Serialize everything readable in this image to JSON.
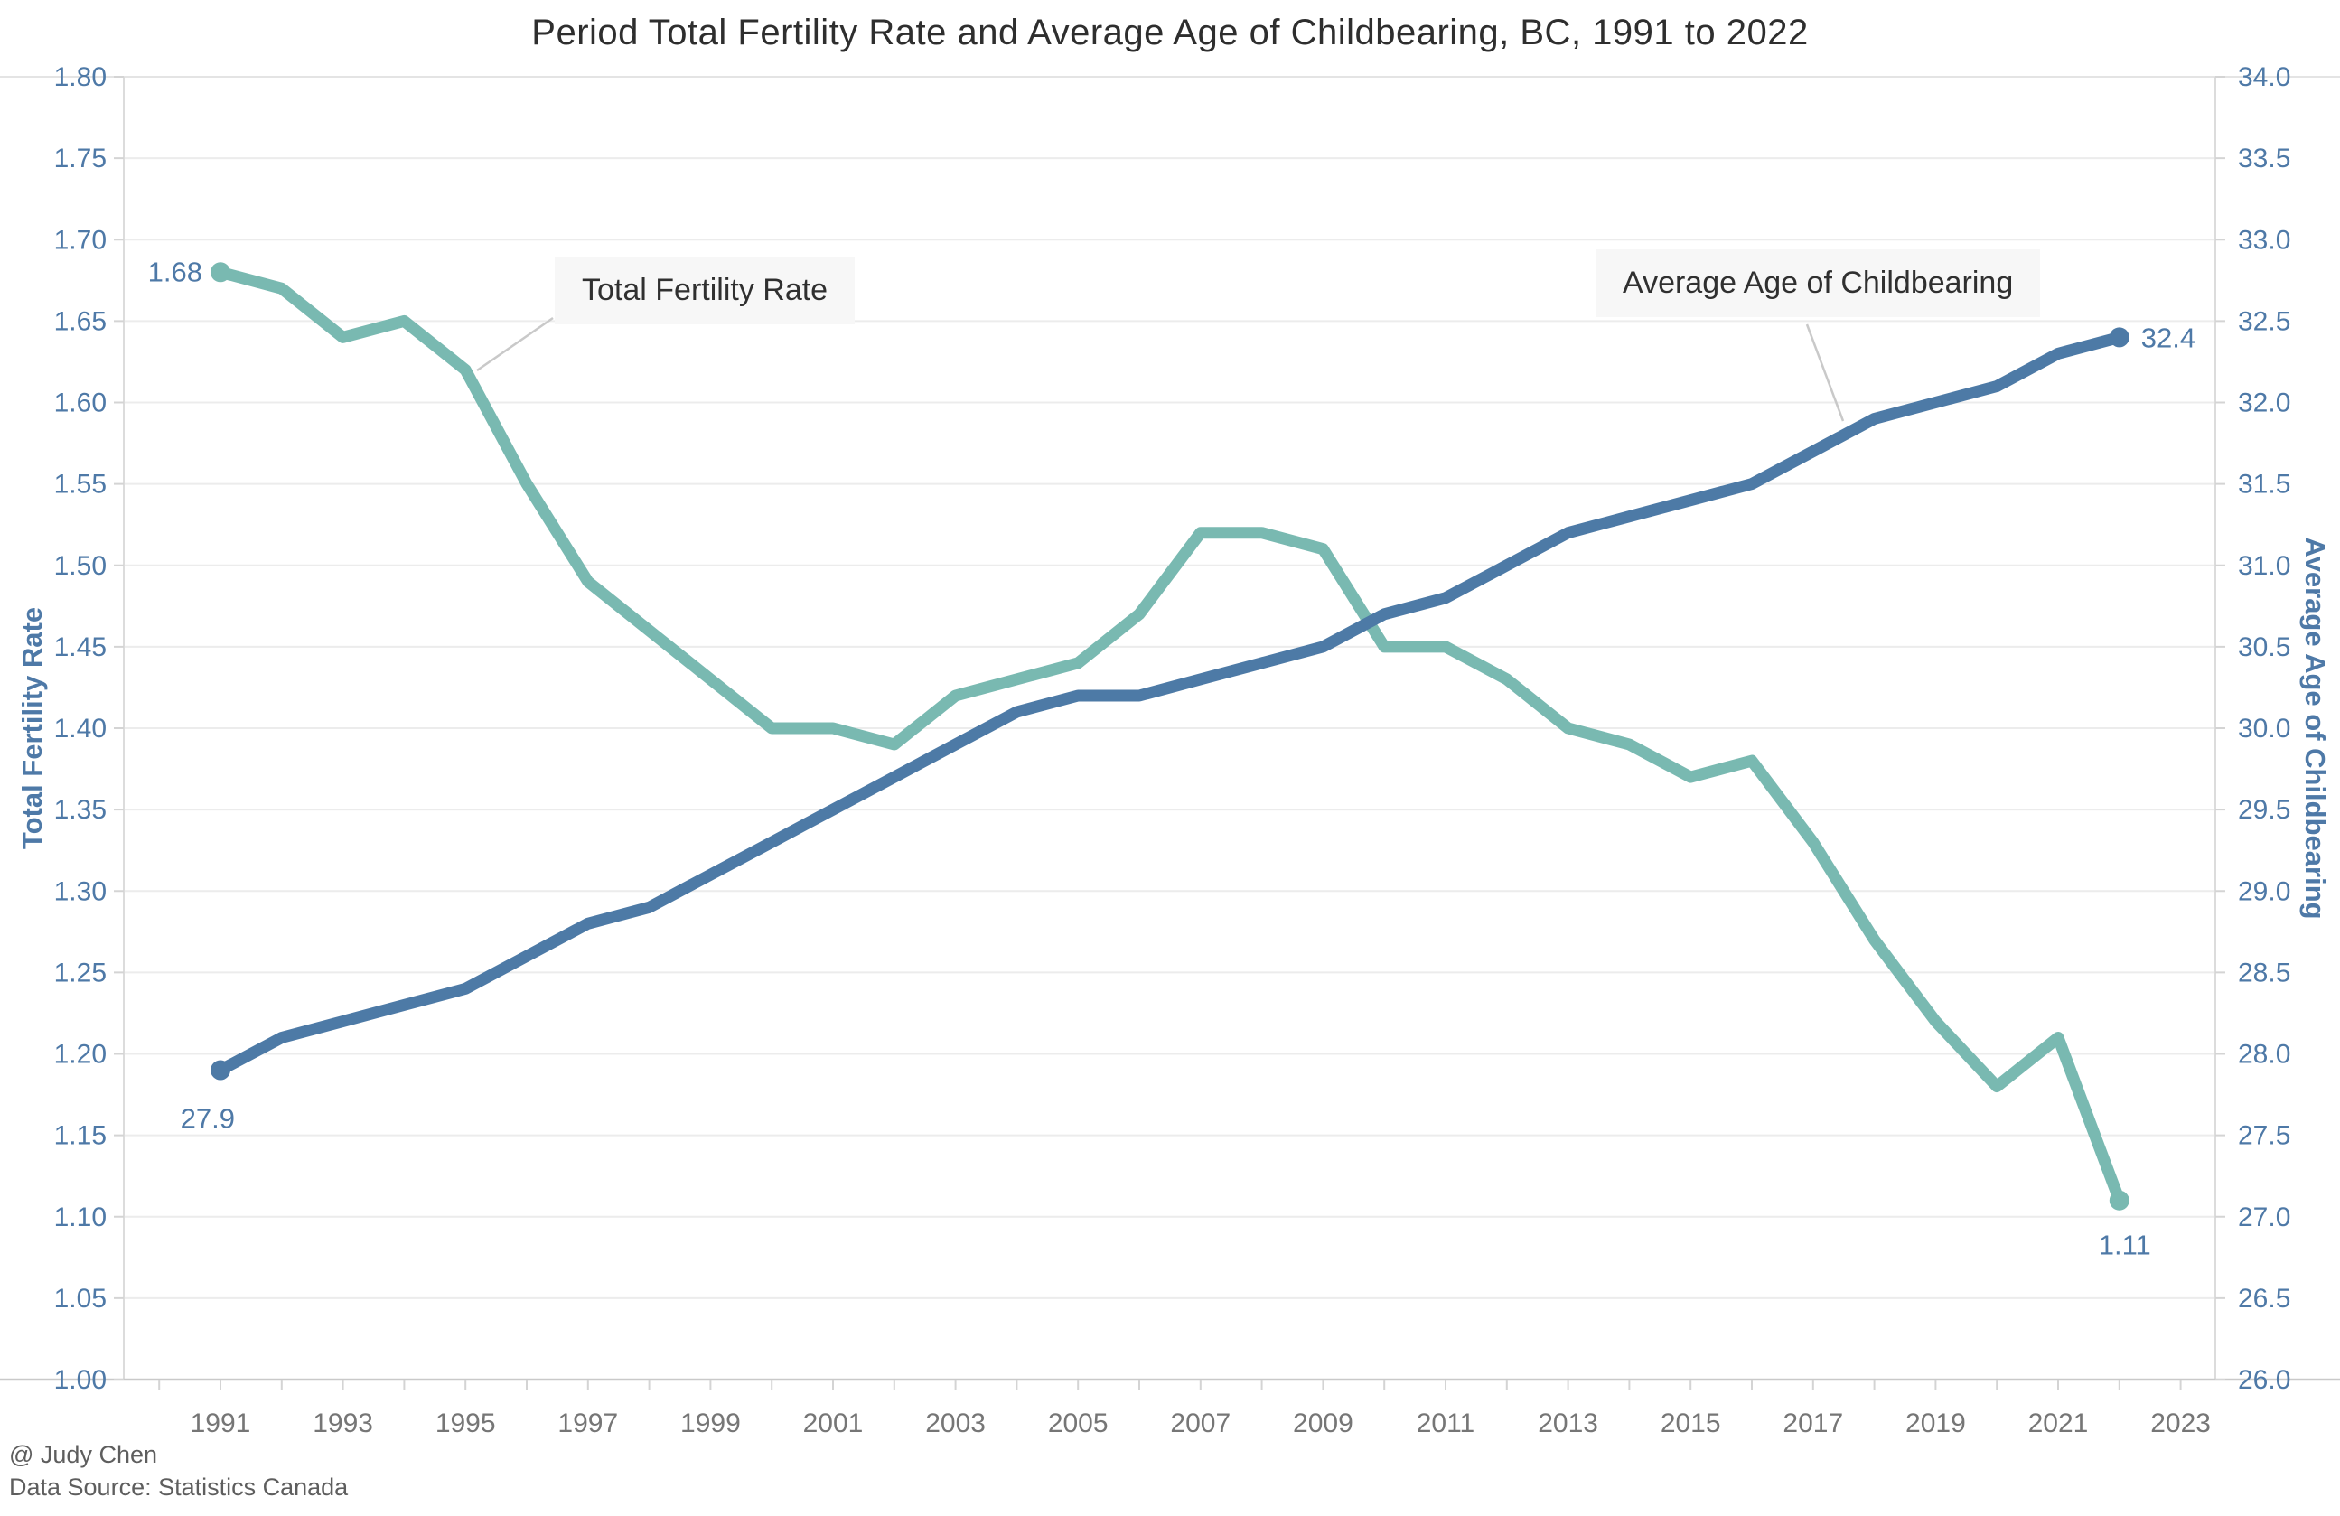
{
  "title": {
    "text": "Period Total Fertility Rate and Average Age of Childbearing, BC, 1991 to 2022"
  },
  "annotations": {
    "tfr_label": "Total Fertility Rate",
    "aac_label": "Average Age of Childbearing"
  },
  "credits": {
    "line1": "@ Judy Chen",
    "line2": "Data Source: Statistics Canada"
  },
  "colors": {
    "tfr_line": "#79b9b1",
    "aac_line": "#4d7aa6",
    "axis_label_blue": "#4e79a7",
    "x_label_gray": "#767676",
    "gridline": "#ececec",
    "plot_border": "#dcdcdc",
    "axis_line": "#c9c9c9",
    "leader_line": "#c9c9c9",
    "annotation_bg": "#f7f7f7",
    "annotation_text": "#303030",
    "title_text": "#2e2e2e",
    "credits_text": "#5e5e5e"
  },
  "chart_data": {
    "type": "line",
    "title": "Period Total Fertility Rate and Average Age of Childbearing, BC, 1991 to 2022",
    "x": [
      1991,
      1992,
      1993,
      1994,
      1995,
      1996,
      1997,
      1998,
      1999,
      2000,
      2001,
      2002,
      2003,
      2004,
      2005,
      2006,
      2007,
      2008,
      2009,
      2010,
      2011,
      2012,
      2013,
      2014,
      2015,
      2016,
      2017,
      2018,
      2019,
      2020,
      2021,
      2022
    ],
    "series": [
      {
        "name": "Total Fertility Rate",
        "axis": "left",
        "color": "#79b9b1",
        "values": [
          1.68,
          1.67,
          1.64,
          1.65,
          1.62,
          1.55,
          1.49,
          1.46,
          1.43,
          1.4,
          1.4,
          1.39,
          1.42,
          1.43,
          1.44,
          1.47,
          1.52,
          1.52,
          1.51,
          1.45,
          1.45,
          1.43,
          1.4,
          1.39,
          1.37,
          1.38,
          1.33,
          1.27,
          1.22,
          1.18,
          1.21,
          1.11
        ],
        "endpoint_labels": [
          "1.68",
          "1.11"
        ]
      },
      {
        "name": "Average Age of Childbearing",
        "axis": "right",
        "color": "#4d7aa6",
        "values": [
          27.9,
          28.1,
          28.2,
          28.3,
          28.4,
          28.6,
          28.8,
          28.9,
          29.1,
          29.3,
          29.5,
          29.7,
          29.9,
          30.1,
          30.2,
          30.2,
          30.3,
          30.4,
          30.5,
          30.7,
          30.8,
          31.0,
          31.2,
          31.3,
          31.4,
          31.5,
          31.7,
          31.9,
          32.0,
          32.1,
          32.3,
          32.4
        ],
        "endpoint_labels": [
          "27.9",
          "32.4"
        ]
      }
    ],
    "left_axis": {
      "label": "Total Fertility Rate",
      "min": 1.0,
      "max": 1.8,
      "tick_step": 0.05,
      "tick_labels": [
        "1.80",
        "1.75",
        "1.70",
        "1.65",
        "1.60",
        "1.55",
        "1.50",
        "1.45",
        "1.40",
        "1.35",
        "1.30",
        "1.25",
        "1.20",
        "1.15",
        "1.10",
        "1.05",
        "1.00"
      ]
    },
    "right_axis": {
      "label": "Average Age of Childbearing",
      "min": 26.0,
      "max": 34.0,
      "tick_step": 0.5,
      "tick_labels": [
        "34.0",
        "33.5",
        "33.0",
        "32.5",
        "32.0",
        "31.5",
        "31.0",
        "30.5",
        "30.0",
        "29.5",
        "29.0",
        "28.5",
        "28.0",
        "27.5",
        "27.0",
        "26.5",
        "26.0"
      ]
    },
    "x_axis": {
      "tick_start_year": 1990,
      "tick_end_year": 2023,
      "label_years": [
        "1991",
        "1993",
        "1995",
        "1997",
        "1999",
        "2001",
        "2003",
        "2005",
        "2007",
        "2009",
        "2011",
        "2013",
        "2015",
        "2017",
        "2019",
        "2021",
        "2023"
      ]
    },
    "grid": "horizontal",
    "legend_position": "inline-annotations"
  }
}
